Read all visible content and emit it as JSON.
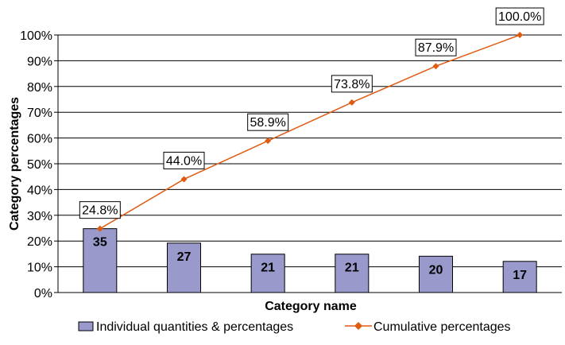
{
  "chart_data": {
    "type": "bar",
    "title": "",
    "xlabel": "Category name",
    "ylabel": "Category percentages",
    "ylim": [
      0,
      100
    ],
    "y_ticks": [
      "0%",
      "10%",
      "20%",
      "30%",
      "40%",
      "50%",
      "60%",
      "70%",
      "80%",
      "90%",
      "100%"
    ],
    "grid": "horizontal",
    "legend_position": "bottom",
    "series": [
      {
        "name": "Individual quantities & percentages",
        "kind": "bar",
        "color": "#9999cc",
        "quantities": [
          "35",
          "27",
          "21",
          "21",
          "20",
          "17"
        ],
        "values": [
          24.8,
          19.2,
          14.9,
          14.9,
          14.1,
          12.1
        ]
      },
      {
        "name": "Cumulative percentages",
        "kind": "line",
        "color": "#e05a10",
        "values": [
          24.8,
          44.0,
          58.9,
          73.8,
          87.9,
          100.0
        ],
        "labels": [
          "24.8%",
          "44.0%",
          "58.9%",
          "73.8%",
          "87.9%",
          "100.0%"
        ]
      }
    ]
  }
}
